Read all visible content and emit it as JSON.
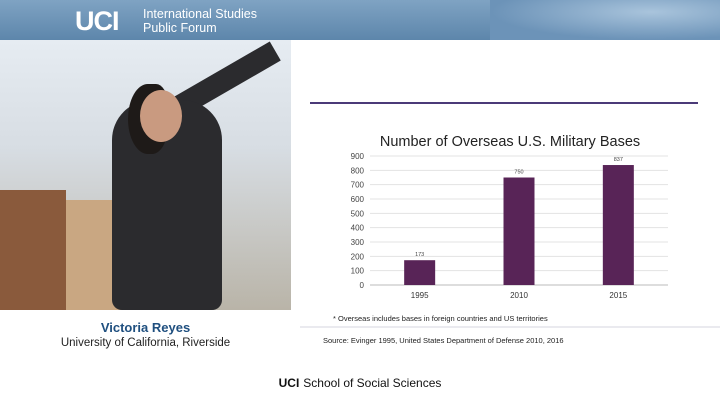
{
  "header": {
    "logo": "UCI",
    "forum_line1": "International Studies",
    "forum_line2": "Public Forum"
  },
  "speaker": {
    "name": "Victoria Reyes",
    "affiliation": "University of California, Riverside"
  },
  "footer": {
    "logo": "UCI",
    "text": "School of Social Sciences"
  },
  "colors": {
    "bar": "#582457",
    "rule": "#4b3a78",
    "header": "#6b91b5"
  },
  "chart_data": {
    "type": "bar",
    "title": "Number of Overseas U.S. Military Bases",
    "categories": [
      "1995",
      "2010",
      "2015"
    ],
    "values": [
      173,
      750,
      837
    ],
    "data_labels": [
      "173",
      "750",
      "837"
    ],
    "yticks": [
      "0",
      "100",
      "200",
      "300",
      "400",
      "500",
      "600",
      "700",
      "800",
      "900"
    ],
    "ylim": [
      0,
      900
    ],
    "grid": true,
    "xlabel": "",
    "ylabel": "",
    "footnote": "* Overseas includes bases in foreign countries and US territories",
    "source": "Source: Evinger 1995, United States Department of Defense 2010, 2016"
  }
}
